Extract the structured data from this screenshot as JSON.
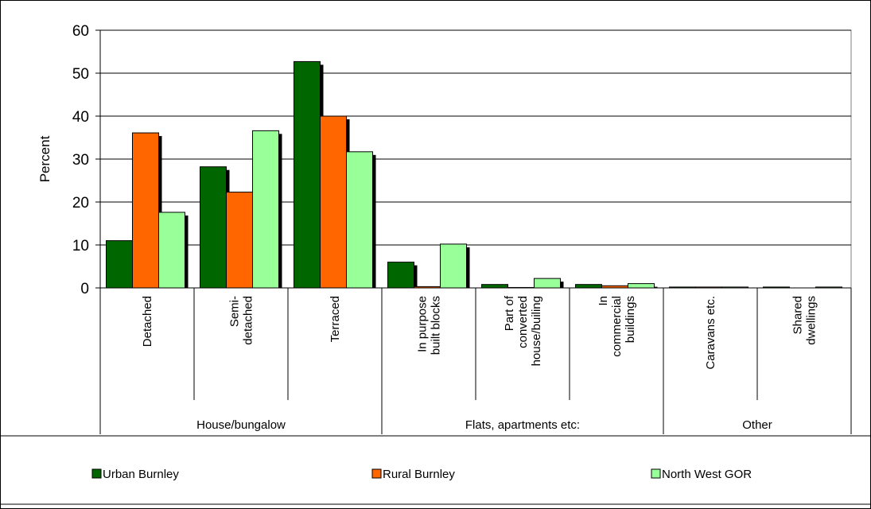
{
  "chart_data": {
    "type": "bar",
    "ylabel": "Percent",
    "ylim": [
      0,
      60
    ],
    "yticks": [
      0,
      10,
      20,
      30,
      40,
      50,
      60
    ],
    "grid": true,
    "legend_position": "bottom",
    "categories": [
      "Detached",
      "Semi-\ndetached",
      "Terraced",
      "In purpose\nbuilt blocks",
      "Part of\nconverted\nhouse/builing",
      "In\ncommercial\nbuildings",
      "Caravans etc.",
      "Shared\ndwellings"
    ],
    "groups": [
      {
        "label": "House/bungalow",
        "count": 3
      },
      {
        "label": "Flats, apartments etc:",
        "count": 3
      },
      {
        "label": "Other",
        "count": 2
      }
    ],
    "series": [
      {
        "name": "Urban Burnley",
        "color": "#006600",
        "values": [
          11,
          28.2,
          52.7,
          6,
          0.8,
          0.8,
          0.2,
          0.2
        ]
      },
      {
        "name": "Rural Burnley",
        "color": "#FF6600",
        "values": [
          36.1,
          22.3,
          40,
          0.3,
          0.1,
          0.5,
          0.2,
          0
        ]
      },
      {
        "name": "North West GOR",
        "color": "#99FF99",
        "values": [
          17.6,
          36.6,
          31.7,
          10.2,
          2.2,
          1,
          0.2,
          0.2
        ]
      }
    ]
  }
}
